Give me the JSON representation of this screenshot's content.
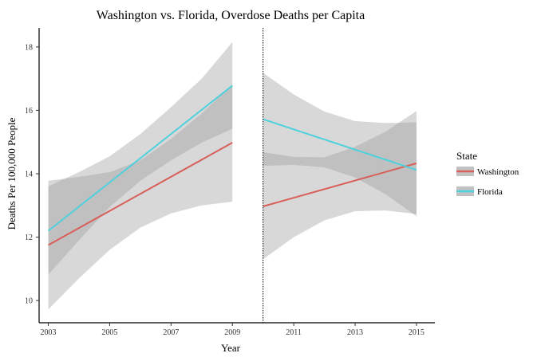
{
  "chart_data": {
    "type": "line",
    "title": "Washington vs. Florida, Overdose Deaths per Capita",
    "xlabel": "Year",
    "ylabel": "Deaths Per 100,000 People",
    "xlim": [
      2002.7,
      2015.6
    ],
    "ylim": [
      9.3,
      18.6
    ],
    "x_ticks": [
      2003,
      2005,
      2007,
      2009,
      2011,
      2013,
      2015
    ],
    "y_ticks": [
      10,
      12,
      14,
      16,
      18
    ],
    "vline": 2010,
    "legend": {
      "title": "State",
      "position": "right",
      "entries": [
        {
          "name": "Washington",
          "color": "#d9605a"
        },
        {
          "name": "Florida",
          "color": "#4fd1dd"
        }
      ]
    },
    "series": [
      {
        "name": "Washington",
        "color": "#d9605a",
        "segment": "pre",
        "x": [
          2003,
          2009
        ],
        "y": [
          11.75,
          14.98
        ],
        "band_x": [
          2003,
          2004,
          2005,
          2006,
          2007,
          2008,
          2009
        ],
        "band_lower": [
          9.72,
          10.7,
          11.6,
          12.3,
          12.75,
          13.0,
          13.12
        ],
        "band_upper": [
          13.78,
          13.9,
          14.05,
          14.42,
          15.1,
          15.9,
          16.82
        ]
      },
      {
        "name": "Florida",
        "color": "#4fd1dd",
        "segment": "pre",
        "x": [
          2003,
          2009
        ],
        "y": [
          12.2,
          16.78
        ],
        "band_x": [
          2003,
          2004,
          2005,
          2006,
          2007,
          2008,
          2009
        ],
        "band_lower": [
          10.82,
          11.9,
          12.95,
          13.78,
          14.42,
          14.98,
          15.42
        ],
        "band_upper": [
          13.6,
          14.05,
          14.55,
          15.25,
          16.1,
          17.0,
          18.15
        ]
      },
      {
        "name": "Washington",
        "color": "#d9605a",
        "segment": "post",
        "x": [
          2010,
          2015
        ],
        "y": [
          12.97,
          14.33
        ],
        "band_x": [
          2010,
          2011,
          2012,
          2013,
          2014,
          2015
        ],
        "band_lower": [
          11.3,
          12.0,
          12.53,
          12.82,
          12.84,
          12.73
        ],
        "band_upper": [
          14.68,
          14.53,
          14.52,
          14.85,
          15.33,
          15.98
        ]
      },
      {
        "name": "Florida",
        "color": "#4fd1dd",
        "segment": "post",
        "x": [
          2010,
          2015
        ],
        "y": [
          15.72,
          14.12
        ],
        "band_x": [
          2010,
          2011,
          2012,
          2013,
          2014,
          2015
        ],
        "band_lower": [
          14.25,
          14.28,
          14.2,
          13.88,
          13.35,
          12.66
        ],
        "band_upper": [
          17.18,
          16.5,
          15.96,
          15.66,
          15.6,
          15.62
        ]
      }
    ]
  }
}
